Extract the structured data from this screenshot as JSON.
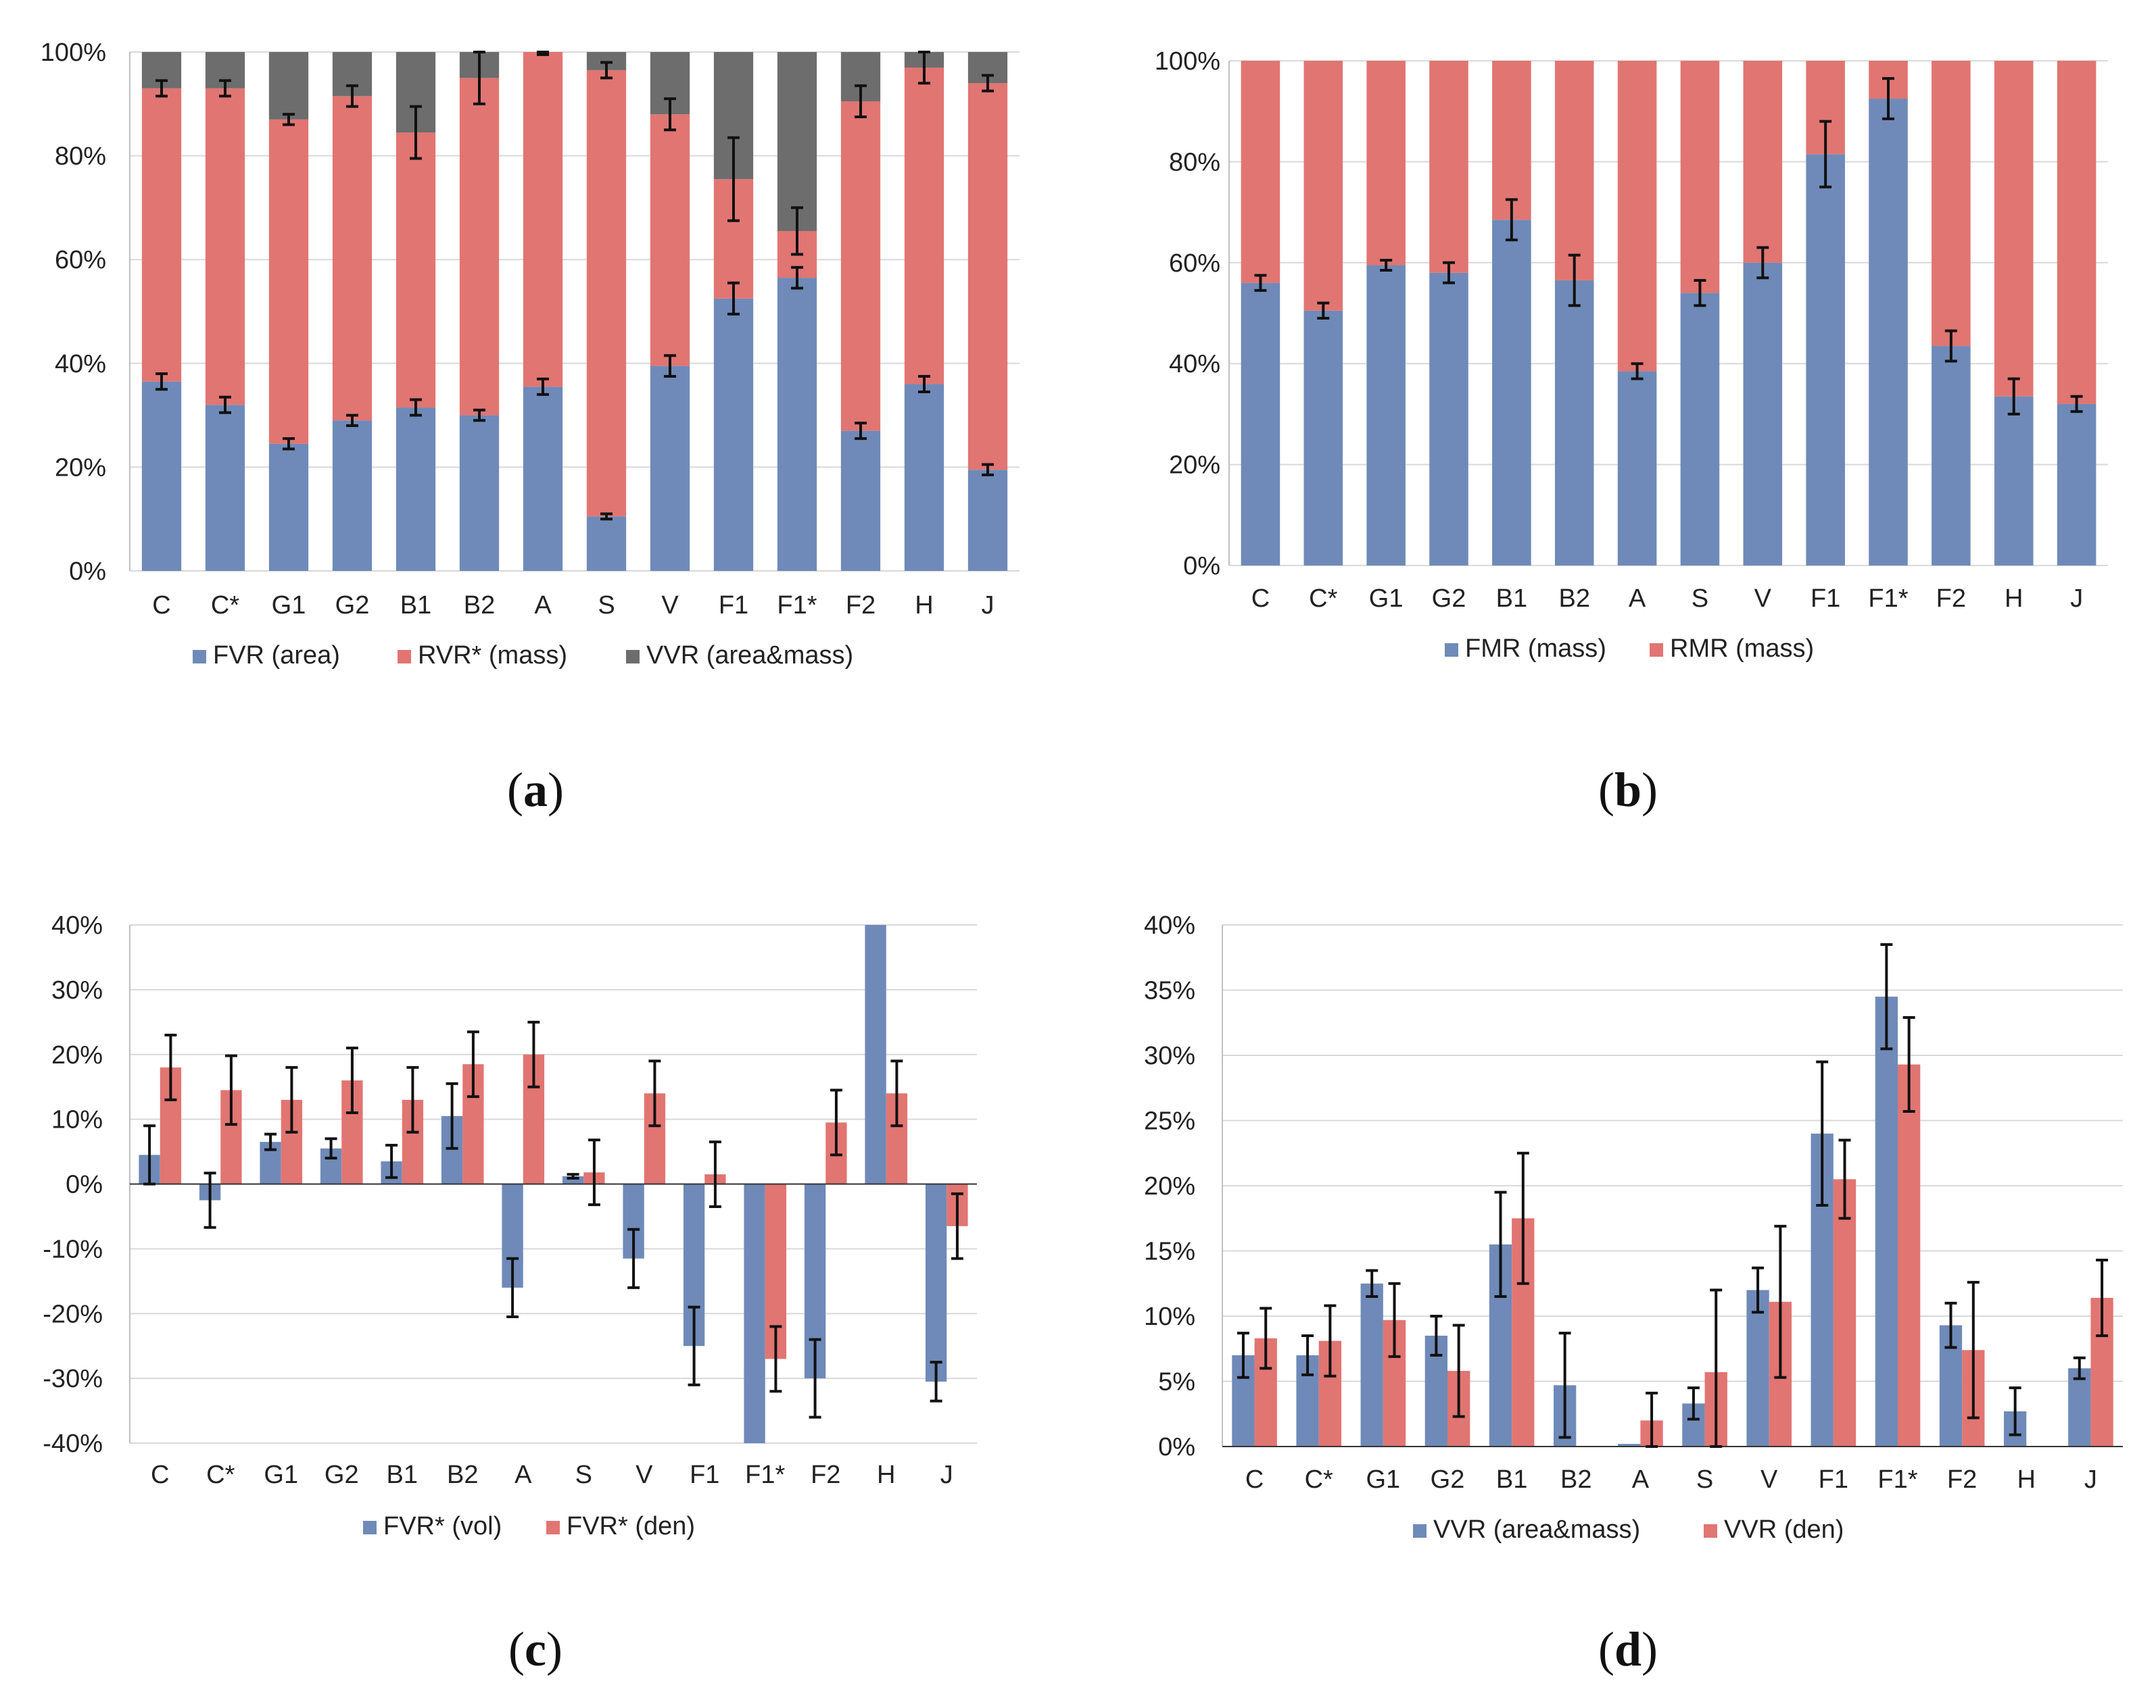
{
  "colors": {
    "blue": "#6f8ab8",
    "red": "#e17572",
    "gray": "#6d6d6d",
    "grid": "#d9d9d9",
    "axis": "#bfbfbf",
    "error": "#111111"
  },
  "chart_data": [
    {
      "id": "a",
      "type": "bar",
      "stacked": true,
      "panel_label": "a",
      "categories": [
        "C",
        "C*",
        "G1",
        "G2",
        "B1",
        "B2",
        "A",
        "S",
        "V",
        "F1",
        "F1*",
        "F2",
        "H",
        "J"
      ],
      "y_ticks": [
        "0%",
        "20%",
        "40%",
        "60%",
        "80%",
        "100%"
      ],
      "ylim": [
        0,
        100
      ],
      "grid": true,
      "legend_position": "bottom",
      "series": [
        {
          "name": "FVR (area)",
          "color": "blue",
          "values": [
            36.5,
            32,
            24.5,
            29,
            31.5,
            30,
            35.5,
            10.5,
            39.5,
            52.5,
            56.5,
            27,
            36,
            19.5
          ],
          "errors": [
            1.5,
            1.5,
            1,
            1,
            1.5,
            1,
            1.5,
            0.5,
            2,
            3,
            2,
            1.5,
            1.5,
            1
          ]
        },
        {
          "name": "RVR* (mass)",
          "color": "red",
          "values": [
            56.5,
            61,
            62.5,
            62.5,
            53,
            65,
            64.5,
            86,
            48.5,
            23,
            9,
            63.5,
            61,
            74.5
          ],
          "errors": [
            1.5,
            1.5,
            1,
            2,
            5,
            5,
            0.5,
            1.5,
            3,
            8,
            4.5,
            3,
            3,
            1.5
          ]
        },
        {
          "name": "VVR (area&mass)",
          "color": "gray",
          "values": [
            7,
            7,
            13,
            8.5,
            15.5,
            5,
            0,
            3.5,
            12,
            24.5,
            34.5,
            9.5,
            3,
            6
          ],
          "errors": null
        }
      ]
    },
    {
      "id": "b",
      "type": "bar",
      "stacked": true,
      "panel_label": "b",
      "categories": [
        "C",
        "C*",
        "G1",
        "G2",
        "B1",
        "B2",
        "A",
        "S",
        "V",
        "F1",
        "F1*",
        "F2",
        "H",
        "J"
      ],
      "y_ticks": [
        "0%",
        "20%",
        "40%",
        "60%",
        "80%",
        "100%"
      ],
      "ylim": [
        0,
        100
      ],
      "grid": true,
      "legend_position": "bottom",
      "series": [
        {
          "name": "FMR (mass)",
          "color": "blue",
          "values": [
            56,
            50.5,
            59.5,
            58,
            68.5,
            56.5,
            38.5,
            54,
            60,
            81.5,
            92.5,
            43.5,
            33.5,
            32
          ],
          "errors": [
            1.5,
            1.5,
            1,
            2,
            4,
            5,
            1.5,
            2.5,
            3,
            6.5,
            4,
            3,
            3.5,
            1.5
          ]
        },
        {
          "name": "RMR (mass)",
          "color": "red",
          "values": [
            44,
            49.5,
            40.5,
            42,
            31.5,
            43.5,
            61.5,
            46,
            40,
            18.5,
            7.5,
            56.5,
            66.5,
            68
          ],
          "errors": null
        }
      ]
    },
    {
      "id": "c",
      "type": "bar",
      "stacked": false,
      "panel_label": "c",
      "categories": [
        "C",
        "C*",
        "G1",
        "G2",
        "B1",
        "B2",
        "A",
        "S",
        "V",
        "F1",
        "F1*",
        "F2",
        "H",
        "J"
      ],
      "y_ticks": [
        "-40%",
        "-30%",
        "-20%",
        "-10%",
        "0%",
        "10%",
        "20%",
        "30%",
        "40%"
      ],
      "ylim": [
        -40,
        40
      ],
      "grid": true,
      "legend_position": "bottom",
      "series": [
        {
          "name": "FVR* (vol)",
          "color": "blue",
          "values": [
            4.5,
            -2.5,
            6.5,
            5.5,
            3.5,
            10.5,
            -16,
            1.2,
            -11.5,
            -25,
            -40,
            -30,
            40,
            -30.5
          ],
          "errors": [
            4.5,
            4.2,
            1.2,
            1.5,
            2.5,
            5,
            4.5,
            0.3,
            4.5,
            6,
            0,
            6,
            0,
            3
          ]
        },
        {
          "name": "FVR* (den)",
          "color": "red",
          "values": [
            18,
            14.5,
            13,
            16,
            13,
            18.5,
            20,
            1.8,
            14,
            1.5,
            -27,
            9.5,
            14,
            -6.5
          ],
          "errors": [
            5,
            5.3,
            5,
            5,
            5,
            5,
            5,
            5,
            5,
            5,
            5,
            5,
            5,
            5
          ]
        }
      ]
    },
    {
      "id": "d",
      "type": "bar",
      "stacked": false,
      "panel_label": "d",
      "categories": [
        "C",
        "C*",
        "G1",
        "G2",
        "B1",
        "B2",
        "A",
        "S",
        "V",
        "F1",
        "F1*",
        "F2",
        "H",
        "J"
      ],
      "y_ticks": [
        "0%",
        "5%",
        "10%",
        "15%",
        "20%",
        "25%",
        "30%",
        "35%",
        "40%"
      ],
      "ylim": [
        0,
        40
      ],
      "grid": true,
      "legend_position": "bottom",
      "series": [
        {
          "name": "VVR (area&mass)",
          "color": "blue",
          "values": [
            7,
            7,
            12.5,
            8.5,
            15.5,
            4.7,
            0.2,
            3.3,
            12,
            24,
            34.5,
            9.3,
            2.7,
            6
          ],
          "errors": [
            1.7,
            1.5,
            1,
            1.5,
            4,
            4,
            0,
            1.2,
            1.7,
            5.5,
            4,
            1.7,
            1.8,
            0.8
          ]
        },
        {
          "name": "VVR (den)",
          "color": "red",
          "values": [
            8.3,
            8.1,
            9.7,
            5.8,
            17.5,
            0,
            2,
            5.7,
            11.1,
            20.5,
            29.3,
            7.4,
            0,
            11.4
          ],
          "errors": [
            2.3,
            2.7,
            2.8,
            3.5,
            5,
            0,
            2.1,
            6.3,
            5.8,
            3,
            3.6,
            5.2,
            0,
            2.9
          ]
        }
      ]
    }
  ]
}
